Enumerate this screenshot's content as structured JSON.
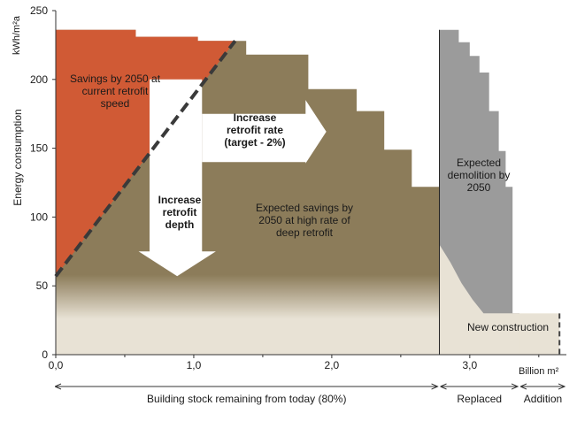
{
  "chart_data": {
    "type": "area",
    "title": "",
    "xlabel": "Billion m²",
    "ylabel": "Energy consumption",
    "yunit": "kWh/m²a",
    "xlim": [
      0,
      3.7
    ],
    "ylim": [
      0,
      250
    ],
    "yticks": [
      0,
      50,
      100,
      150,
      200,
      250
    ],
    "ytick_labels": [
      "0",
      "50",
      "100",
      "150",
      "200",
      "250"
    ],
    "xticks": [
      0,
      1,
      2,
      3
    ],
    "xtick_labels": [
      "0,0",
      "1,0",
      "2,0",
      "3,0"
    ],
    "existing_stock_profile": {
      "x": [
        0,
        0.58,
        0.58,
        1.03,
        1.03,
        1.38,
        1.38,
        1.83,
        1.83,
        2.18,
        2.18,
        2.38,
        2.38,
        2.58,
        2.58,
        2.78,
        2.78
      ],
      "y": [
        236,
        236,
        231,
        231,
        228,
        228,
        218,
        218,
        193,
        193,
        177,
        177,
        149,
        149,
        122,
        122,
        0
      ]
    },
    "current_retrofit_line": {
      "x": [
        0,
        1.3
      ],
      "y": [
        57,
        228
      ]
    },
    "deep_retrofit_level": 50,
    "new_build_level": 26,
    "demolished_profile": {
      "x": [
        2.78,
        2.92,
        2.92,
        3.0,
        3.0,
        3.07,
        3.07,
        3.14,
        3.14,
        3.21,
        3.21,
        3.26,
        3.26,
        3.31,
        3.31,
        3.36,
        3.36
      ],
      "y": [
        236,
        236,
        227,
        227,
        217,
        217,
        205,
        205,
        177,
        177,
        148,
        148,
        122,
        122,
        30,
        30,
        0
      ]
    },
    "demolished_lower_curve": {
      "x": [
        2.78,
        2.86,
        2.94,
        3.02,
        3.1
      ],
      "y": [
        80,
        67,
        52,
        40,
        30
      ]
    },
    "new_construction": {
      "x_start": 3.36,
      "x_end": 3.65,
      "level": 30
    },
    "annotations": {
      "current_speed": "Savings by 2050 at current retrofit speed",
      "retrofit_rate": "Increase retrofit rate (target - 2%)",
      "retrofit_depth": "Increase retrofit depth",
      "deep_savings": "Expected savings by 2050 at high rate of deep retrofit",
      "demolition": "Expected demolition by 2050",
      "new_construction": "New construction"
    },
    "segments": [
      {
        "label": "Building stock remaining from today (80%)",
        "from": 0,
        "to": 2.78
      },
      {
        "label": "Replaced",
        "from": 2.78,
        "to": 3.36
      },
      {
        "label": "Addition",
        "from": 3.36,
        "to": 3.7
      }
    ],
    "colors": {
      "current_savings": "#d05a35",
      "deep_savings": "#8c7c5a",
      "remaining": "#e8e2d5",
      "demolition": "#9b9b9b",
      "arrow": "#ffffff",
      "dashed_line": "#3a3a3a",
      "axis": "#333333"
    }
  }
}
